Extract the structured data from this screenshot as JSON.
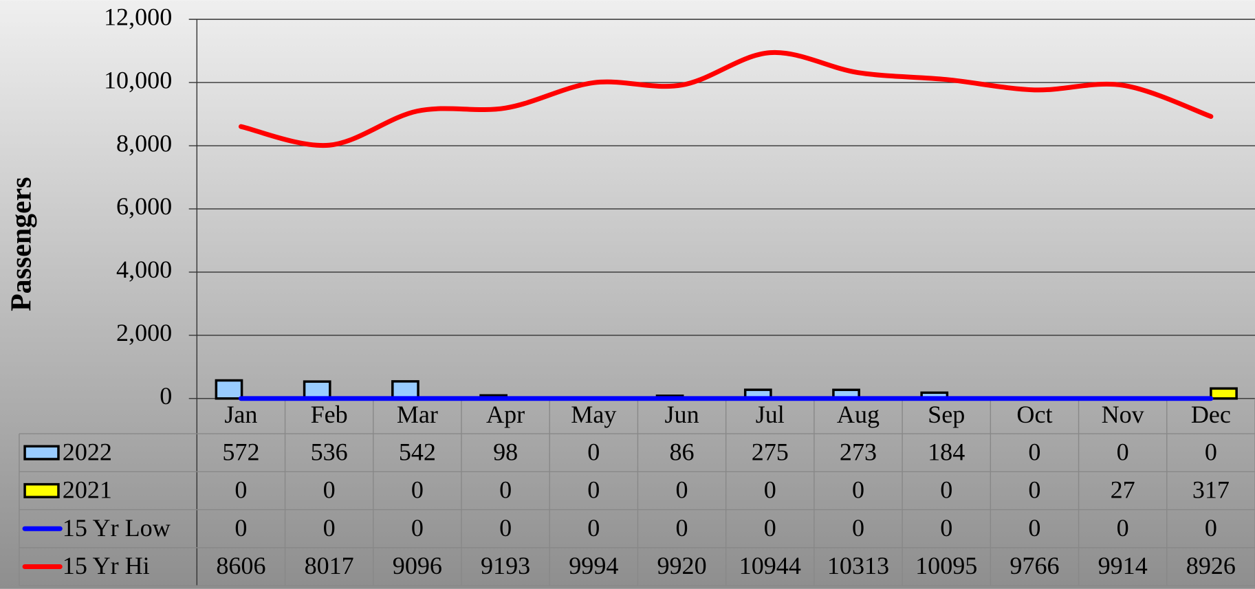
{
  "chart_data": {
    "type": "bar",
    "y_label": "Passengers",
    "categories": [
      "Jan",
      "Feb",
      "Mar",
      "Apr",
      "May",
      "Jun",
      "Jul",
      "Aug",
      "Sep",
      "Oct",
      "Nov",
      "Dec"
    ],
    "series": [
      {
        "name": "2022",
        "type": "bar",
        "color": "#99ccff",
        "values": [
          572,
          536,
          542,
          98,
          0,
          86,
          275,
          273,
          184,
          0,
          0,
          0
        ]
      },
      {
        "name": "2021",
        "type": "bar",
        "color": "#ffff00",
        "values": [
          0,
          0,
          0,
          0,
          0,
          0,
          0,
          0,
          0,
          0,
          27,
          317
        ]
      },
      {
        "name": "15 Yr Low",
        "type": "line",
        "color": "#0000ff",
        "values": [
          0,
          0,
          0,
          0,
          0,
          0,
          0,
          0,
          0,
          0,
          0,
          0
        ]
      },
      {
        "name": "15 Yr Hi",
        "type": "line",
        "color": "#ff0000",
        "values": [
          8606,
          8017,
          9096,
          9193,
          9994,
          9920,
          10944,
          10313,
          10095,
          9766,
          9914,
          8926
        ]
      }
    ],
    "ylim": [
      0,
      12000
    ],
    "yticks": [
      0,
      {
        "value": 2000,
        "label": "2,000"
      },
      {
        "value": 4000,
        "label": "4,000"
      },
      {
        "value": 6000,
        "label": "6,000"
      },
      {
        "value": 8000,
        "label": "8,000"
      },
      {
        "value": 10000,
        "label": "10,000"
      },
      {
        "value": 12000,
        "label": "12,000"
      }
    ],
    "grid": true,
    "smooth": true,
    "data_table": true
  }
}
